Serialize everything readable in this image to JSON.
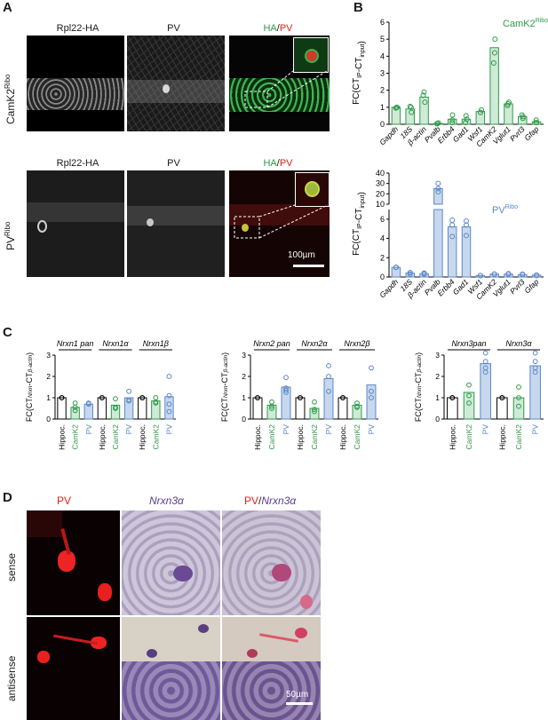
{
  "panels": {
    "A": "A",
    "B": "B",
    "C": "C",
    "D": "D"
  },
  "panelA": {
    "col_titles": [
      "Rpl22-HA",
      "PV"
    ],
    "merge_title": {
      "ha": "HA",
      "sep": "/",
      "pv": "PV"
    },
    "row1_label": "CamK2",
    "row1_sup": "Ribo",
    "row2_label": "PV",
    "row2_sup": "Ribo",
    "scalebar": "100µm"
  },
  "panelB": {
    "ylabel_main": "FC(CT",
    "ylabel_sub1": "IP",
    "ylabel_mid": "-CT",
    "ylabel_sub2": "input",
    "ylabel_end": ")"
  },
  "panelC": {
    "ylabel_main": "FC(CT",
    "ylabel_sub1": "Nrxn",
    "ylabel_mid": "-CT",
    "ylabel_sub2": "β-actin",
    "ylabel_end": ")"
  },
  "panelD": {
    "col_titles": {
      "pv": "PV",
      "nrxn": "Nrxn3α",
      "merge_pv": "PV",
      "merge_sep": "/",
      "merge_nrxn": "Nrxn3α"
    },
    "rows": [
      "sense",
      "antisense"
    ],
    "scalebar": "50µm"
  },
  "colors": {
    "green": "#2e9a4a",
    "green_fill": "#cfead6",
    "blue": "#5b87c8",
    "blue_fill": "#c7d8ee",
    "red": "#e0201b"
  },
  "chart_data": [
    {
      "type": "bar",
      "panel": "B-top",
      "legend": "CamK2",
      "legend_sup": "Ribo",
      "categories": [
        "Gapdh",
        "18S",
        "β-actin",
        "Pvalb",
        "Erbb4",
        "Gad1",
        "Wsf1",
        "CamK2",
        "Vglut1",
        "Pvrl3",
        "Gfap"
      ],
      "values": [
        1.0,
        0.9,
        1.6,
        0.05,
        0.3,
        0.3,
        0.75,
        4.5,
        1.2,
        0.45,
        0.15
      ],
      "points": [
        [
          1.0,
          1.0,
          0.95
        ],
        [
          1.05,
          0.7,
          1.0
        ],
        [
          1.9,
          1.3,
          1.7
        ],
        [
          0.08,
          0.04,
          0.03
        ],
        [
          0.55,
          0.1,
          0.25
        ],
        [
          0.5,
          0.1,
          0.3
        ],
        [
          0.7,
          0.85,
          0.7
        ],
        [
          5.0,
          3.6,
          4.2
        ],
        [
          1.3,
          1.1,
          1.2
        ],
        [
          0.55,
          0.35,
          0.45
        ],
        [
          0.25,
          0.1,
          0.1
        ]
      ],
      "ylim": [
        0,
        6
      ],
      "yticks": [
        "0",
        "1",
        "2",
        "3",
        "4",
        "5",
        "6"
      ]
    },
    {
      "type": "bar",
      "panel": "B-bottom",
      "legend": "PV",
      "legend_sup": "Ribo",
      "categories": [
        "Gapdh",
        "18S",
        "β-actin",
        "Pvalb",
        "Erbb4",
        "Gad1",
        "Wsf1",
        "CamK2",
        "Vglut1",
        "Pvrl3",
        "Gfap"
      ],
      "values": [
        1.0,
        0.4,
        0.35,
        25,
        5.2,
        5.2,
        0.15,
        0.3,
        0.3,
        0.25,
        0.2
      ],
      "points": [
        [
          1.0,
          1.0,
          1.0
        ],
        [
          0.45,
          0.3,
          0.45
        ],
        [
          0.3,
          0.35,
          0.4
        ],
        [
          30,
          25,
          22
        ],
        [
          5.9,
          5.4,
          4.2
        ],
        [
          5.8,
          5.4,
          4.3
        ],
        [
          0.15,
          0.15,
          0.15
        ],
        [
          0.3,
          0.3,
          0.3
        ],
        [
          0.3,
          0.35,
          0.3
        ],
        [
          0.25,
          0.25,
          0.3
        ],
        [
          0.2,
          0.15,
          0.2
        ]
      ],
      "ylim": [
        0,
        40
      ],
      "broken_axis": true,
      "yticks_low": [
        "0",
        "2",
        "4",
        "6"
      ],
      "yticks_high": [
        "10",
        "20",
        "30",
        "40"
      ]
    },
    {
      "type": "bar",
      "panel": "C-Nrxn1",
      "groups": [
        "Nrxn1 pan",
        "Nrxn1α",
        "Nrxn1β"
      ],
      "categories": [
        "Hippoc.",
        "CamK2",
        "PV"
      ],
      "values": [
        [
          1.0,
          0.55,
          0.7
        ],
        [
          1.0,
          0.65,
          1.0
        ],
        [
          1.0,
          0.85,
          1.05
        ]
      ],
      "points": [
        [
          [
            1,
            1
          ],
          [
            0.75,
            0.4,
            0.55
          ],
          [
            0.7,
            0.75
          ]
        ],
        [
          [
            1,
            1
          ],
          [
            0.95,
            0.5,
            0.55
          ],
          [
            1.3,
            0.85,
            0.9
          ]
        ],
        [
          [
            1,
            1
          ],
          [
            1.0,
            0.75,
            0.8
          ],
          [
            2.0,
            0.7,
            0.35,
            1.1
          ]
        ]
      ],
      "ylim": [
        0,
        3
      ],
      "yticks": [
        "0",
        "1",
        "2",
        "3"
      ]
    },
    {
      "type": "bar",
      "panel": "C-Nrxn2",
      "groups": [
        "Nrxn2 pan",
        "Nrxn2α",
        "Nrxn2β"
      ],
      "categories": [
        "Hippoc.",
        "CamK2",
        "PV"
      ],
      "values": [
        [
          1.0,
          0.65,
          1.5
        ],
        [
          1.0,
          0.5,
          1.9
        ],
        [
          1.0,
          0.65,
          1.6
        ]
      ],
      "points": [
        [
          [
            1,
            1
          ],
          [
            0.8,
            0.6,
            0.5
          ],
          [
            1.95,
            1.35,
            1.45,
            1.25
          ]
        ],
        [
          [
            1,
            1
          ],
          [
            0.8,
            0.35,
            0.45
          ],
          [
            2.5,
            2.0,
            1.3
          ]
        ],
        [
          [
            1,
            1
          ],
          [
            0.75,
            0.6,
            0.55
          ],
          [
            2.4,
            1.3,
            1.0
          ]
        ]
      ],
      "ylim": [
        0,
        3
      ],
      "yticks": [
        "0",
        "1",
        "2",
        "3"
      ]
    },
    {
      "type": "bar",
      "panel": "C-Nrxn3",
      "groups": [
        "Nrxn3pan",
        "Nrxn3α"
      ],
      "categories": [
        "Hippoc.",
        "CamK2",
        "PV"
      ],
      "values": [
        [
          1.0,
          1.25,
          2.6
        ],
        [
          1.0,
          1.0,
          2.5
        ]
      ],
      "points": [
        [
          [
            1,
            1
          ],
          [
            1.6,
            0.75,
            1.1
          ],
          [
            3.1,
            2.4,
            2.7,
            2.2
          ]
        ],
        [
          [
            1,
            1
          ],
          [
            1.5,
            0.6,
            1.0
          ],
          [
            3.1,
            2.7,
            2.4,
            2.2
          ]
        ]
      ],
      "ylim": [
        0,
        3
      ],
      "yticks": [
        "0",
        "1",
        "2",
        "3"
      ]
    }
  ]
}
